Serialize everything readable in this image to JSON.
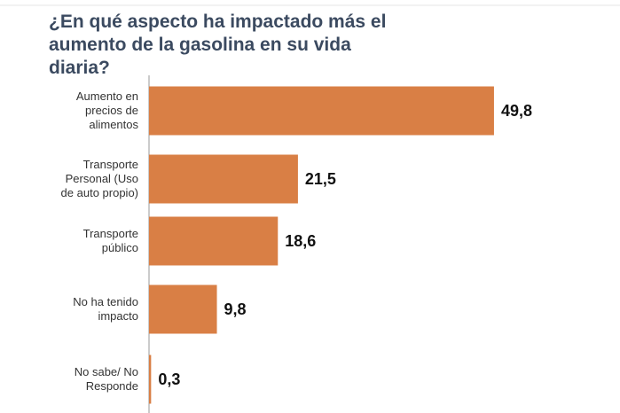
{
  "chart_data": {
    "type": "bar",
    "orientation": "horizontal",
    "title": "¿En qué aspecto ha impactado más el aumento de la gasolina en su vida diaria?",
    "categories": [
      "Aumento en precios de alimentos",
      "Transporte Personal (Uso de auto propio)",
      "Transporte público",
      "No ha tenido impacto",
      "No sabe/ No Responde"
    ],
    "values": [
      49.8,
      21.5,
      18.6,
      9.8,
      0.3
    ],
    "value_labels": [
      "49,8",
      "21,5",
      "18,6",
      "9,8",
      "0,3"
    ],
    "color": "#d97f45"
  }
}
